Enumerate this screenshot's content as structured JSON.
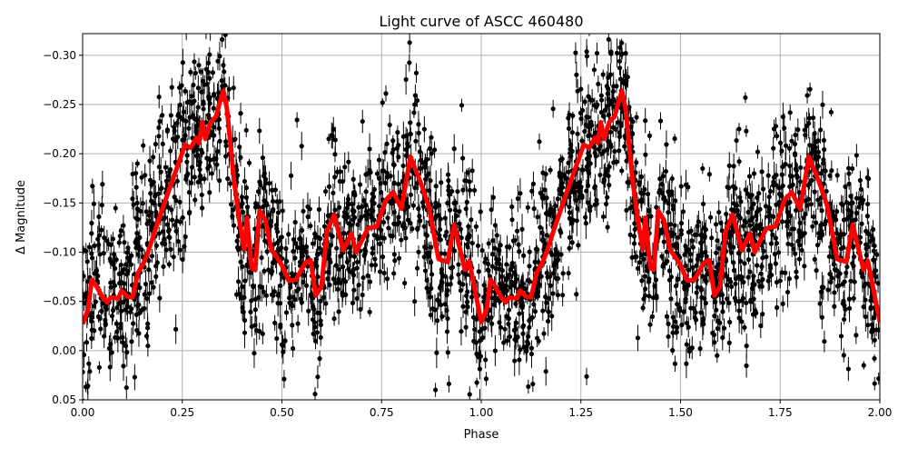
{
  "chart_data": {
    "type": "scatter",
    "title": "Light curve of ASCC 460480",
    "xlabel": "Phase",
    "ylabel": "Δ Magnitude",
    "xlim": [
      0,
      2
    ],
    "ylim": [
      0.05,
      -0.322
    ],
    "y_inverted": true,
    "grid": true,
    "xticks": [
      0,
      0.25,
      0.5,
      0.75,
      1.0,
      1.25,
      1.5,
      1.75,
      2.0
    ],
    "xtick_labels": [
      "0.00",
      "0.25",
      "0.50",
      "0.75",
      "1.00",
      "1.25",
      "1.50",
      "1.75",
      "2.00"
    ],
    "yticks": [
      -0.3,
      -0.25,
      -0.2,
      -0.15,
      -0.1,
      -0.05,
      0.0,
      0.05
    ],
    "ytick_labels": [
      "−0.30",
      "−0.25",
      "−0.20",
      "−0.15",
      "−0.10",
      "−0.05",
      "0.00",
      "0.05"
    ],
    "colors": {
      "observations": "#000000",
      "model": "#ff0000",
      "grid": "#b0b0b0"
    },
    "series": [
      {
        "kind": "binned-model-line",
        "phase": [
          0,
          0.014,
          0.023,
          0.034,
          0.05,
          0.062,
          0.07,
          0.089,
          0.098,
          0.112,
          0.125,
          0.139,
          0.153,
          0.164,
          0.185,
          0.214,
          0.237,
          0.257,
          0.271,
          0.285,
          0.292,
          0.3,
          0.308,
          0.321,
          0.335,
          0.342,
          0.353,
          0.362,
          0.38,
          0.394,
          0.405,
          0.412,
          0.424,
          0.433,
          0.444,
          0.458,
          0.474,
          0.487,
          0.501,
          0.517,
          0.535,
          0.558,
          0.572,
          0.585,
          0.599,
          0.613,
          0.631,
          0.654,
          0.674,
          0.686,
          0.715,
          0.738,
          0.761,
          0.779,
          0.8,
          0.822,
          0.847,
          0.868,
          0.893,
          0.916,
          0.932,
          0.959,
          0.97,
          1.0
        ],
        "mag": [
          -0.027,
          -0.042,
          -0.072,
          -0.066,
          -0.054,
          -0.049,
          -0.054,
          -0.053,
          -0.061,
          -0.055,
          -0.054,
          -0.079,
          -0.089,
          -0.1,
          -0.126,
          -0.16,
          -0.186,
          -0.209,
          -0.206,
          -0.216,
          -0.211,
          -0.232,
          -0.215,
          -0.232,
          -0.238,
          -0.249,
          -0.264,
          -0.246,
          -0.172,
          -0.13,
          -0.103,
          -0.135,
          -0.084,
          -0.082,
          -0.142,
          -0.133,
          -0.102,
          -0.095,
          -0.086,
          -0.071,
          -0.072,
          -0.089,
          -0.092,
          -0.056,
          -0.065,
          -0.121,
          -0.138,
          -0.102,
          -0.119,
          -0.1,
          -0.124,
          -0.126,
          -0.153,
          -0.161,
          -0.144,
          -0.197,
          -0.172,
          -0.147,
          -0.093,
          -0.09,
          -0.128,
          -0.082,
          -0.091,
          -0.029
        ],
        "repeats_every_phase": 1
      }
    ]
  }
}
